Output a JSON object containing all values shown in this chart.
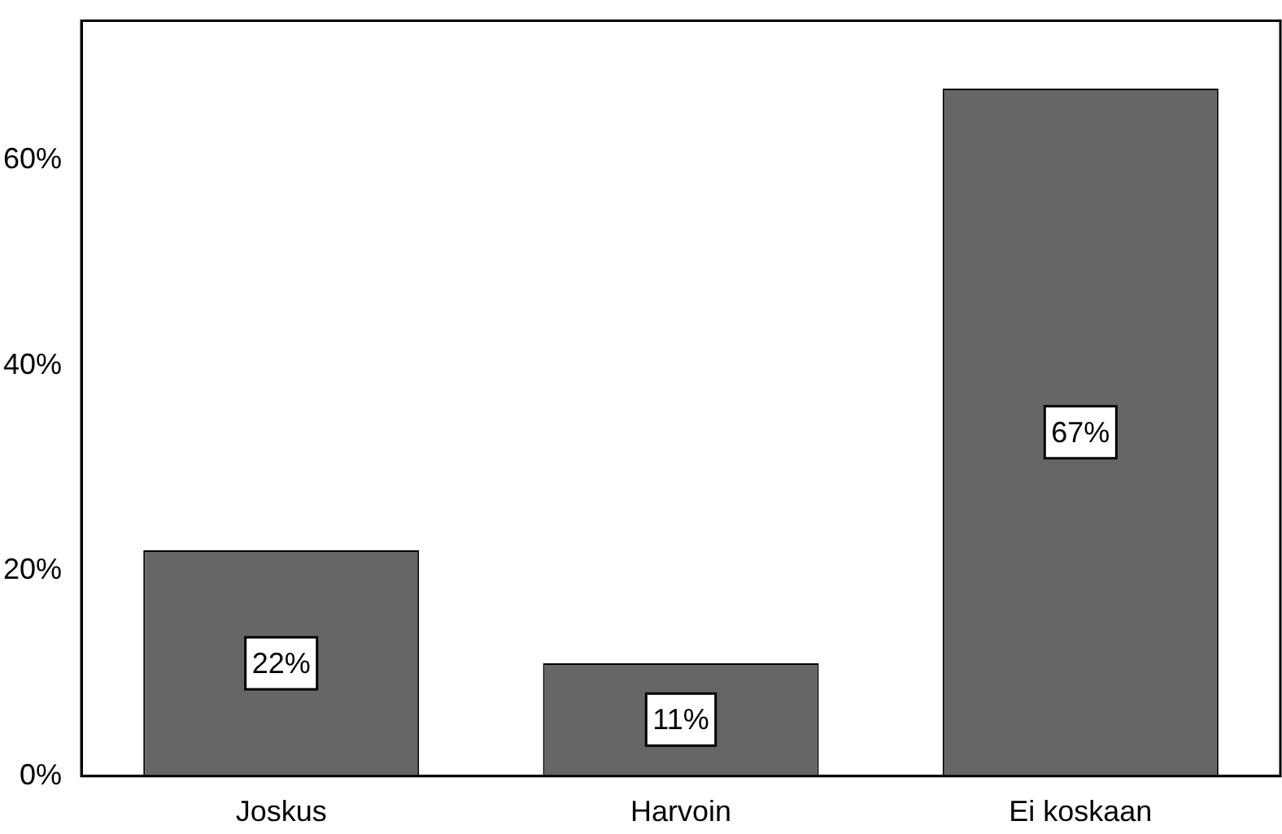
{
  "chart_data": {
    "type": "bar",
    "categories": [
      "Joskus",
      "Harvoin",
      "Ei koskaan"
    ],
    "values": [
      22,
      11,
      67
    ],
    "value_labels": [
      "22%",
      "11%",
      "67%"
    ],
    "color": "#666666",
    "ylim": [
      0,
      73.6
    ],
    "yticks": [
      {
        "value": 0,
        "label": "0%"
      },
      {
        "value": 20,
        "label": "20%"
      },
      {
        "value": 40,
        "label": "40%"
      },
      {
        "value": 60,
        "label": "60%"
      }
    ],
    "grid": false,
    "legend": false
  }
}
